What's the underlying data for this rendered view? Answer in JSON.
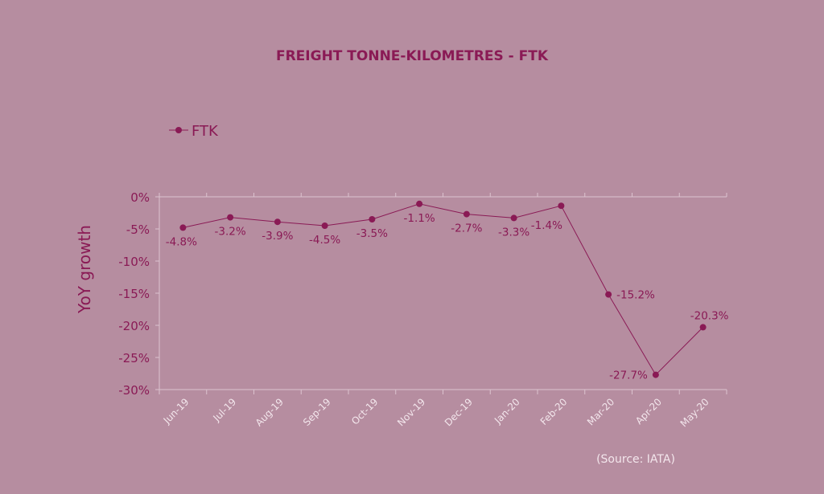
{
  "chart_data": {
    "type": "line",
    "title": "FREIGHT TONNE-KILOMETRES - FTK",
    "ylabel": "YoY growth",
    "xlabel": "",
    "ylim": [
      -30,
      0
    ],
    "yticks": [
      "0%",
      "-5%",
      "-10%",
      "-15%",
      "-20%",
      "-25%",
      "-30%"
    ],
    "ytick_values": [
      0,
      -5,
      -10,
      -15,
      -20,
      -25,
      -30
    ],
    "categories": [
      "Jun-19",
      "Jul-19",
      "Aug-19",
      "Sep-19",
      "Oct-19",
      "Nov-19",
      "Dec-19",
      "Jan-20",
      "Feb-20",
      "Mar-20",
      "Apr-20",
      "May-20"
    ],
    "series": [
      {
        "name": "FTK",
        "values": [
          -4.8,
          -3.2,
          -3.9,
          -4.5,
          -3.5,
          -1.1,
          -2.7,
          -3.3,
          -1.4,
          -15.2,
          -27.7,
          -20.3
        ],
        "labels": [
          "-4.8%",
          "-3.2%",
          "-3.9%",
          "-4.5%",
          "-3.5%",
          "-1.1%",
          "-2.7%",
          "-3.3%",
          "-1.4%",
          "-15.2%",
          "-27.7%",
          "-20.3%"
        ],
        "label_pos": [
          "below",
          "below",
          "below",
          "below",
          "below",
          "below",
          "below",
          "below",
          "below",
          "right",
          "left",
          "above"
        ],
        "color": "#8a1a55"
      }
    ],
    "legend": "top-left",
    "grid": false,
    "source": "(Source: IATA)"
  }
}
